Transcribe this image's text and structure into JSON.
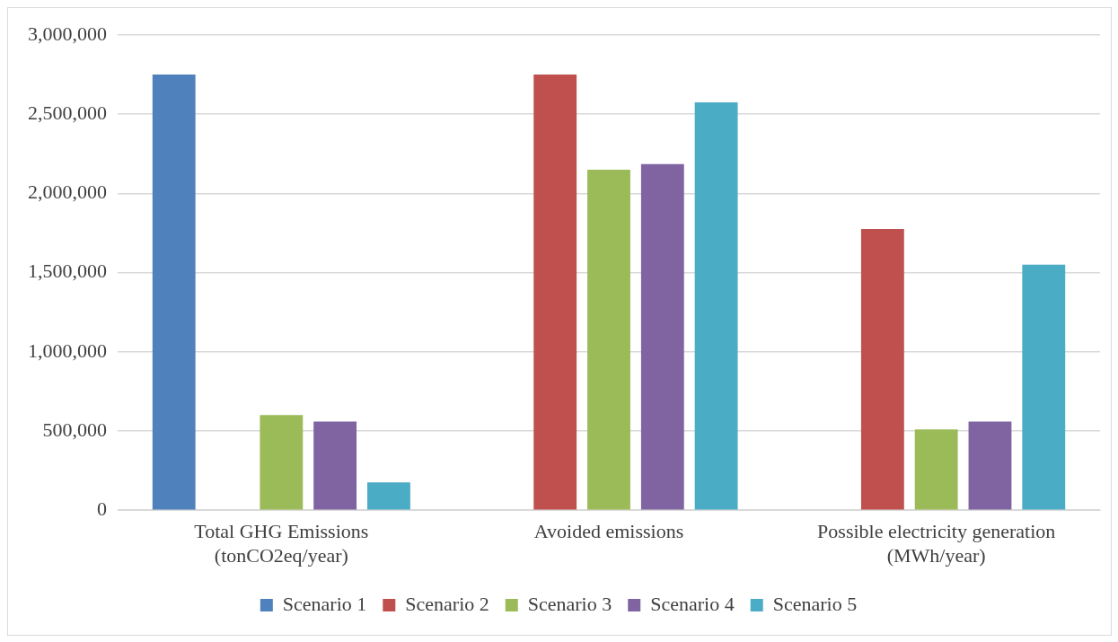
{
  "chart_data": {
    "type": "bar",
    "categories": [
      "Total GHG Emissions\n(tonCO2eq/year)",
      "Avoided emissions",
      "Possible electricity generation\n(MWh/year)"
    ],
    "series": [
      {
        "name": "Scenario 1",
        "color": "#4f81bd",
        "values": [
          2750000,
          null,
          null
        ]
      },
      {
        "name": "Scenario 2",
        "color": "#c0504d",
        "values": [
          null,
          2750000,
          1775000
        ]
      },
      {
        "name": "Scenario 3",
        "color": "#9bbb59",
        "values": [
          600000,
          2150000,
          510000
        ]
      },
      {
        "name": "Scenario 4",
        "color": "#8064a2",
        "values": [
          560000,
          2185000,
          560000
        ]
      },
      {
        "name": "Scenario 5",
        "color": "#4bacc6",
        "values": [
          175000,
          2575000,
          1550000
        ]
      }
    ],
    "ylim": [
      0,
      3000000
    ],
    "yticks": [
      {
        "value": 0,
        "label": "0"
      },
      {
        "value": 500000,
        "label": "500,000"
      },
      {
        "value": 1000000,
        "label": "1,000,000"
      },
      {
        "value": 1500000,
        "label": "1,500,000"
      },
      {
        "value": 2000000,
        "label": "2,000,000"
      },
      {
        "value": 2500000,
        "label": "2,500,000"
      },
      {
        "value": 3000000,
        "label": "3,000,000"
      }
    ],
    "grid": "y",
    "legend": "bottom"
  }
}
